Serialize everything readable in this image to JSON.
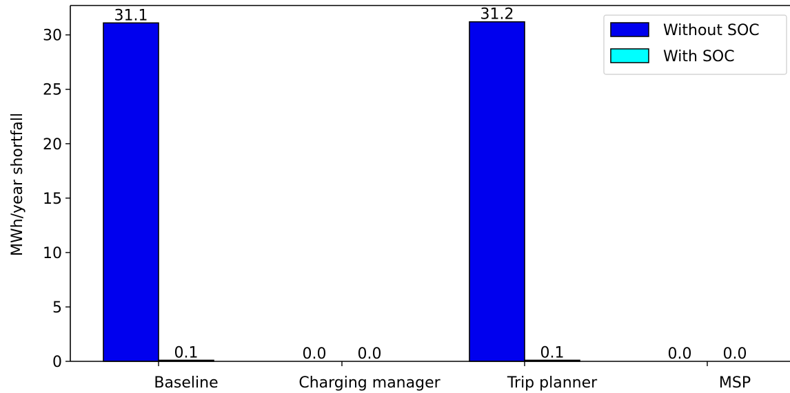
{
  "chart_data": {
    "type": "bar",
    "title": "",
    "xlabel": "",
    "ylabel": "MWh/year shortfall",
    "categories": [
      "Baseline",
      "Charging manager",
      "Trip planner",
      "MSP"
    ],
    "series": [
      {
        "name": "Without SOC",
        "values": [
          31.1,
          0.0,
          31.2,
          0.0
        ],
        "color": "#0000ee",
        "labels": [
          "31.1",
          "0.0",
          "31.2",
          "0.0"
        ]
      },
      {
        "name": "With SOC",
        "values": [
          0.1,
          0.0,
          0.1,
          0.0
        ],
        "color": "#00ffff",
        "labels": [
          "0.1",
          "0.0",
          "0.1",
          "0.0"
        ]
      }
    ],
    "ylim": [
      0,
      32.7
    ],
    "yticks": [
      0,
      5,
      10,
      15,
      20,
      25,
      30
    ],
    "grid": false,
    "legend_position": "top-right"
  }
}
